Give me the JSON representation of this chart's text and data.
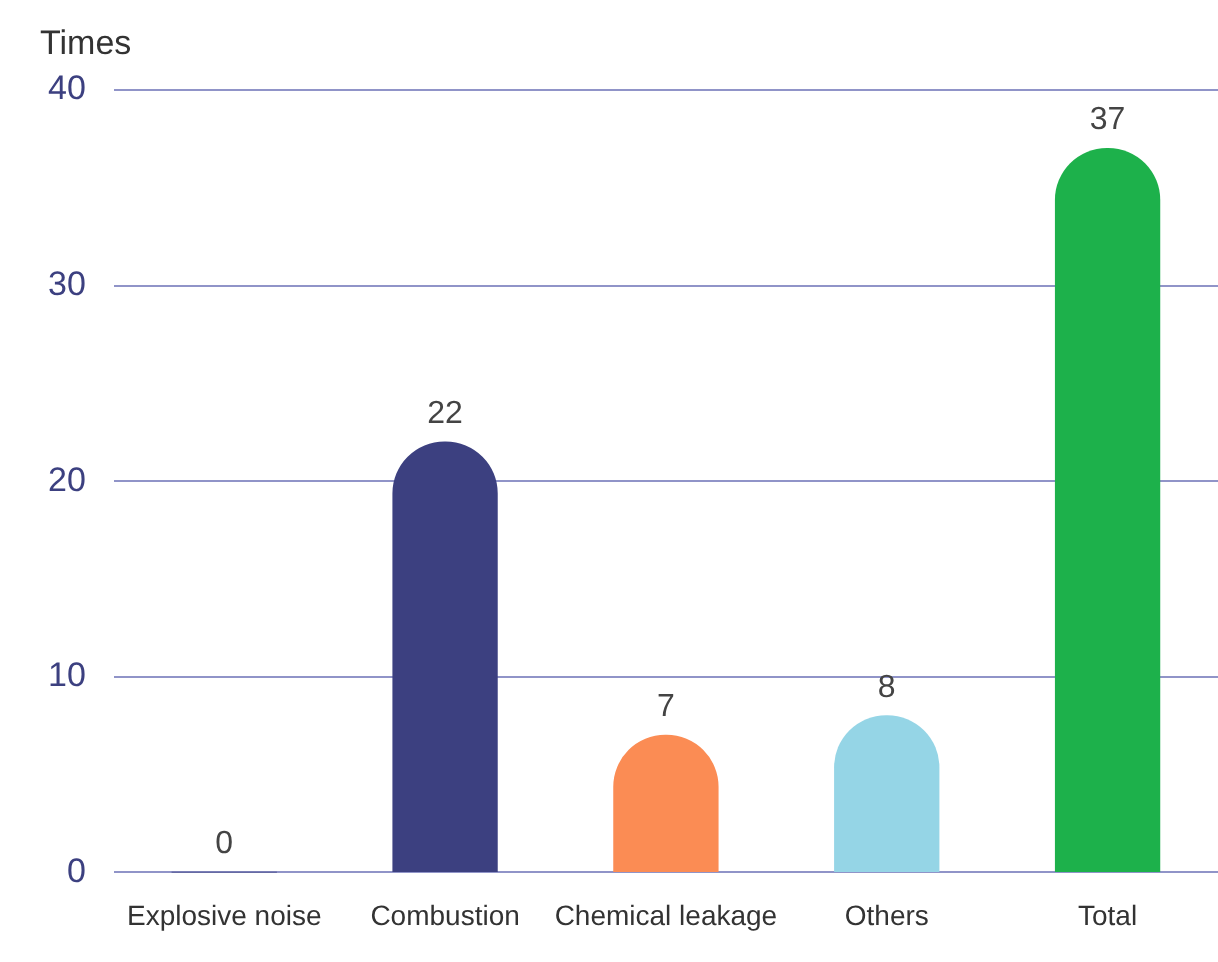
{
  "chart_data": {
    "type": "bar",
    "ylabel": "Times",
    "categories": [
      "Explosive noise",
      "Combustion",
      "Chemical leakage",
      "Others",
      "Total"
    ],
    "values": [
      0,
      22,
      7,
      8,
      37
    ],
    "colors": [
      "#3c4080",
      "#3c4080",
      "#fb8c54",
      "#95d5e6",
      "#1db14b"
    ],
    "ylim": [
      0,
      40
    ],
    "yticks": [
      0,
      10,
      20,
      30,
      40
    ],
    "grid": "y",
    "data_labels": true,
    "legend": false
  }
}
